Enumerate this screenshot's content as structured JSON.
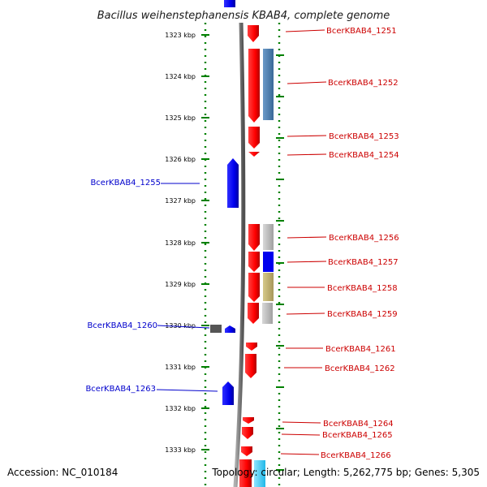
{
  "title": "Bacillus weihenstephanensis KBAB4, complete genome",
  "footer": {
    "accession": "Accession: NC_010184",
    "summary": "Topology: circular; Length: 5,262,775 bp; Genes: 5,305"
  },
  "colors": {
    "forward_gene": "#ff0000",
    "reverse_gene": "#0000ff",
    "forward_label": "#cc0000",
    "reverse_label": "#0000cc",
    "backbone": "#808080",
    "ruler_dots": "#008000"
  },
  "ruler": {
    "unit": "kbp",
    "ticks": [
      "1323 kbp",
      "1324 kbp",
      "1325 kbp",
      "1326 kbp",
      "1327 kbp",
      "1328 kbp",
      "1329 kbp",
      "1330 kbp",
      "1331 kbp",
      "1332 kbp",
      "1333 kbp"
    ]
  },
  "genes": [
    {
      "label": "BcerKBAB4_1251",
      "strand": "forward"
    },
    {
      "label": "BcerKBAB4_1252",
      "strand": "forward"
    },
    {
      "label": "BcerKBAB4_1253",
      "strand": "forward"
    },
    {
      "label": "BcerKBAB4_1254",
      "strand": "forward"
    },
    {
      "label": "BcerKBAB4_1255",
      "strand": "reverse"
    },
    {
      "label": "BcerKBAB4_1256",
      "strand": "forward"
    },
    {
      "label": "BcerKBAB4_1257",
      "strand": "forward"
    },
    {
      "label": "BcerKBAB4_1258",
      "strand": "forward"
    },
    {
      "label": "BcerKBAB4_1259",
      "strand": "forward"
    },
    {
      "label": "BcerKBAB4_1260",
      "strand": "reverse"
    },
    {
      "label": "BcerKBAB4_1261",
      "strand": "forward"
    },
    {
      "label": "BcerKBAB4_1262",
      "strand": "forward"
    },
    {
      "label": "BcerKBAB4_1263",
      "strand": "reverse"
    },
    {
      "label": "BcerKBAB4_1264",
      "strand": "forward"
    },
    {
      "label": "BcerKBAB4_1265",
      "strand": "forward"
    },
    {
      "label": "BcerKBAB4_1266",
      "strand": "forward"
    }
  ]
}
